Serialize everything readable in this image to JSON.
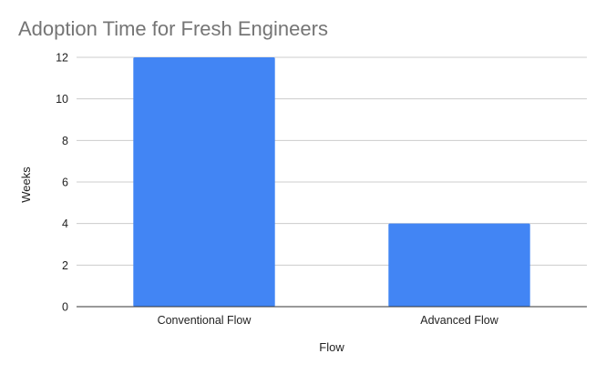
{
  "chart_data": {
    "type": "bar",
    "title": "Adoption Time for Fresh Engineers",
    "xlabel": "Flow",
    "ylabel": "Weeks",
    "categories": [
      "Conventional Flow",
      "Advanced Flow"
    ],
    "series": [
      {
        "values": [
          12,
          4
        ],
        "color": "#4285f4"
      }
    ],
    "ylim": [
      0,
      12
    ],
    "yticks": [
      0,
      2,
      4,
      6,
      8,
      10,
      12
    ],
    "grid": true,
    "legend": "none"
  }
}
